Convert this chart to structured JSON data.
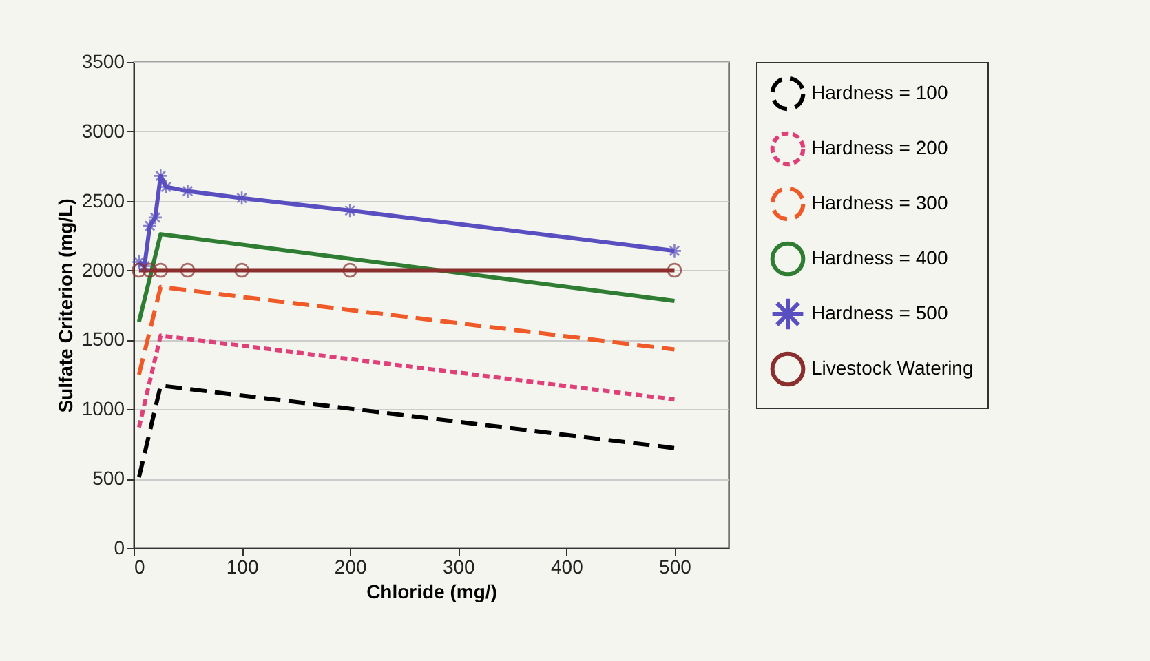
{
  "chart_data": {
    "type": "line",
    "xlabel": "Chloride (mg/)",
    "ylabel": "Sulfate Criterion (mg/L)",
    "xlim": [
      0,
      550
    ],
    "xticks": [
      0,
      100,
      200,
      300,
      400,
      500
    ],
    "ylim": [
      0,
      3500
    ],
    "yticks": [
      0,
      500,
      1000,
      1500,
      2000,
      2500,
      3000,
      3500
    ],
    "grid": "y",
    "legend": "right",
    "series": [
      {
        "name": "Hardness = 100",
        "color": "#000000",
        "line_style": "dashed",
        "marker": "none",
        "x": [
          5,
          25,
          500
        ],
        "values": [
          510,
          1170,
          720
        ]
      },
      {
        "name": "Hardness = 200",
        "color": "#e0407a",
        "line_style": "dotted",
        "marker": "none",
        "x": [
          5,
          25,
          500
        ],
        "values": [
          870,
          1530,
          1070
        ]
      },
      {
        "name": "Hardness = 300",
        "color": "#f05a28",
        "line_style": "dashed",
        "marker": "none",
        "x": [
          5,
          25,
          500
        ],
        "values": [
          1250,
          1880,
          1430
        ]
      },
      {
        "name": "Hardness = 400",
        "color": "#2e7d32",
        "line_style": "solid",
        "marker": "none",
        "x": [
          5,
          25,
          500
        ],
        "values": [
          1630,
          2260,
          1780
        ]
      },
      {
        "name": "Hardness = 500",
        "color": "#5a4fc0",
        "line_style": "solid",
        "marker": "cross",
        "x": [
          5,
          10,
          15,
          20,
          25,
          30,
          50,
          100,
          200,
          500
        ],
        "values": [
          2060,
          2030,
          2320,
          2380,
          2680,
          2600,
          2570,
          2520,
          2430,
          2140
        ]
      },
      {
        "name": "Livestock Watering",
        "color": "#8b2e2e",
        "line_style": "solid",
        "marker": "circle",
        "x": [
          5,
          15,
          25,
          50,
          100,
          200,
          500
        ],
        "values": [
          2000,
          2000,
          2000,
          2000,
          2000,
          2000,
          2000
        ]
      }
    ]
  }
}
